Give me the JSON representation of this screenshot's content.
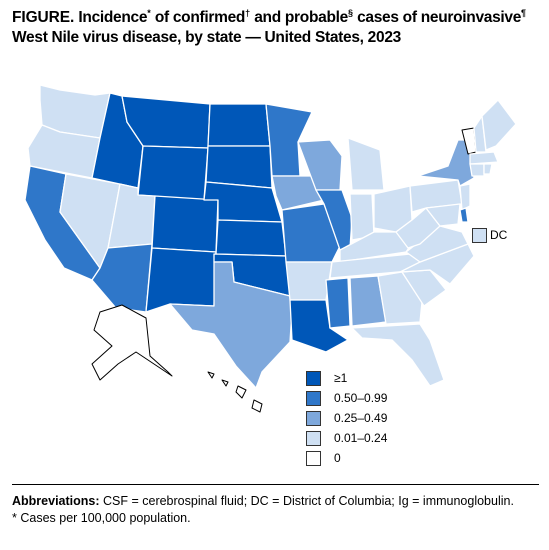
{
  "title": {
    "label": "FIGURE.",
    "text_part1": "Incidence",
    "mark1": "*",
    "text_part2": "of confirmed",
    "mark2": "†",
    "text_part3": "and probable",
    "mark3": "§",
    "text_part4": "cases of neuroinvasive",
    "mark4": "¶",
    "text_part5": "West Nile virus disease, by state — United States, 2023"
  },
  "colors": {
    "ge1": "#0057b8",
    "c050_099": "#2f77c9",
    "c025_049": "#7ea8dc",
    "c001_024": "#cfe0f3",
    "c0": "#ffffff"
  },
  "legend": [
    {
      "label": "≥1",
      "color": "#0057b8"
    },
    {
      "label": "0.50–0.99",
      "color": "#2f77c9"
    },
    {
      "label": "0.25–0.49",
      "color": "#7ea8dc"
    },
    {
      "label": "0.01–0.24",
      "color": "#cfe0f3"
    },
    {
      "label": "0",
      "color": "#ffffff"
    }
  ],
  "dc": {
    "label": "DC",
    "color": "#cfe0f3"
  },
  "states": {
    "WA": "0.01–0.24",
    "OR": "0.01–0.24",
    "CA": "0.50–0.99",
    "NV": "0.01–0.24",
    "ID": "≥1",
    "MT": "≥1",
    "WY": "≥1",
    "UT": "0.01–0.24",
    "AZ": "0.50–0.99",
    "CO": "≥1",
    "NM": "≥1",
    "ND": "≥1",
    "SD": "≥1",
    "NE": "≥1",
    "KS": "≥1",
    "OK": "≥1",
    "TX": "0.25–0.49",
    "MN": "0.50–0.99",
    "IA": "0.25–0.49",
    "MO": "0.50–0.99",
    "AR": "0.01–0.24",
    "LA": "≥1",
    "WI": "0.25–0.49",
    "IL": "0.50–0.99",
    "MI": "0.01–0.24",
    "IN": "0.01–0.24",
    "OH": "0.01–0.24",
    "KY": "0.01–0.24",
    "TN": "0.01–0.24",
    "MS": "0.50–0.99",
    "AL": "0.25–0.49",
    "GA": "0.01–0.24",
    "FL": "0.01–0.24",
    "SC": "0.01–0.24",
    "NC": "0.01–0.24",
    "VA": "0.01–0.24",
    "WV": "0.01–0.24",
    "PA": "0.01–0.24",
    "NY": "0.25–0.49",
    "VT": "0",
    "NH": "0.01–0.24",
    "ME": "0.01–0.24",
    "MA": "0.01–0.24",
    "CT": "0.01–0.24",
    "RI": "0.01–0.24",
    "NJ": "0.01–0.24",
    "DE": "0.50–0.99",
    "MD": "0.01–0.24",
    "AK": "0",
    "HI": "0"
  },
  "footnotes": {
    "abbrev_label": "Abbreviations:",
    "abbrev_text": "CSF = cerebrospinal fluid; DC = District of Columbia; Ig = immunoglobulin.",
    "note1": "* Cases per 100,000 population."
  }
}
